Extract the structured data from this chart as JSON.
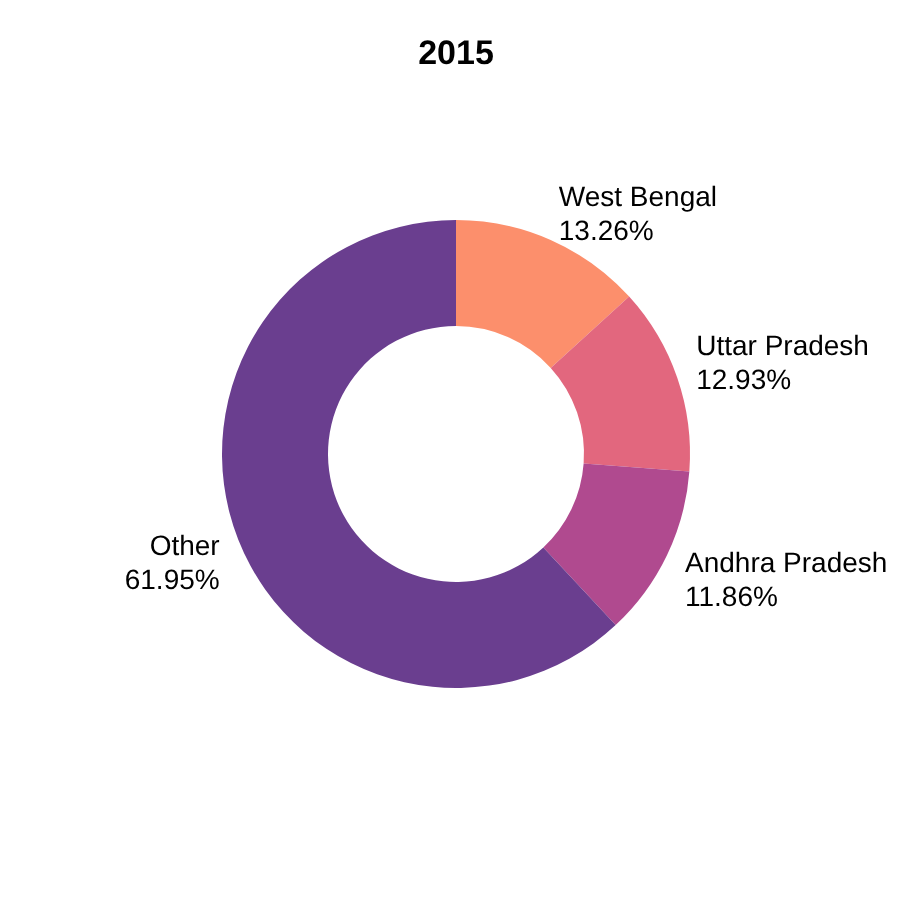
{
  "chart_data": {
    "type": "donut",
    "title": "2015",
    "categories": [
      "West Bengal",
      "Uttar Pradesh",
      "Andhra Pradesh",
      "Other"
    ],
    "values": [
      13.26,
      12.93,
      11.86,
      61.95
    ],
    "value_labels": [
      "13.26%",
      "12.93%",
      "11.86%",
      "61.95%"
    ],
    "colors": [
      "#fc8f6c",
      "#e2677e",
      "#b04a8f",
      "#6a3e8f"
    ]
  }
}
